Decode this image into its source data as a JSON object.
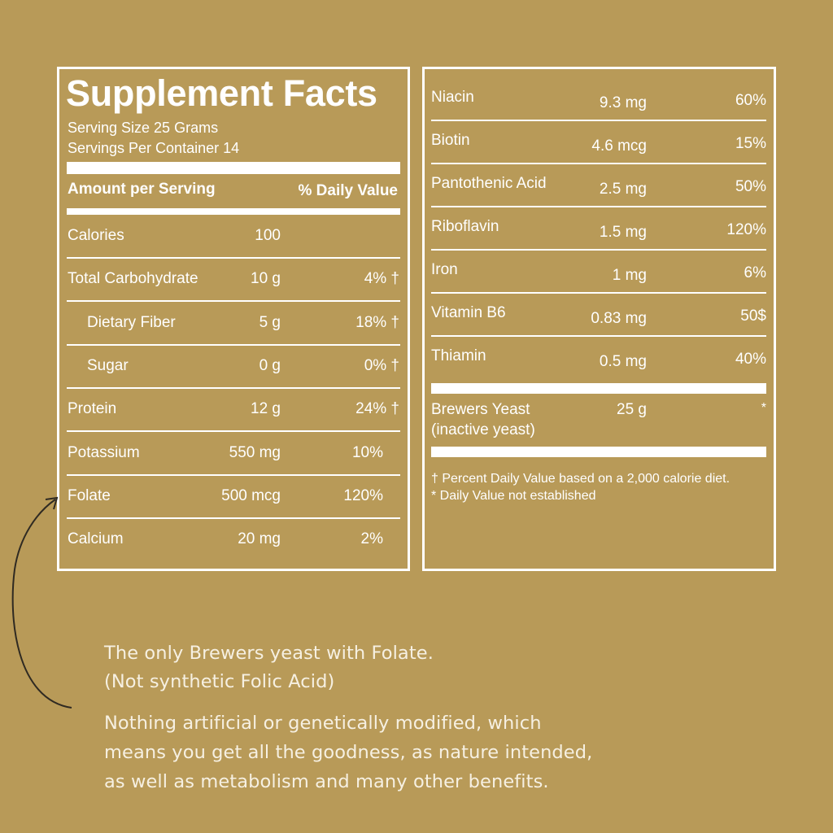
{
  "left_panel": {
    "title": "Supplement Facts",
    "serving_size": "Serving Size 25 Grams",
    "servings_per_container": "Servings Per Container 14",
    "amount_header": "Amount per Serving",
    "dv_header": "% Daily Value",
    "rows": [
      {
        "name": "Calories",
        "amount": "100",
        "dv": ""
      },
      {
        "name": "Total Carbohydrate",
        "amount": "10 g",
        "dv": "4% †"
      },
      {
        "name": "Dietary Fiber",
        "amount": "5 g",
        "dv": "18% †"
      },
      {
        "name": "Sugar",
        "amount": "0 g",
        "dv": "0% †"
      },
      {
        "name": "Protein",
        "amount": "12 g",
        "dv": "24% †"
      },
      {
        "name": "Potassium",
        "amount": "550 mg",
        "dv": "10%"
      },
      {
        "name": "Folate",
        "amount": "500 mcg",
        "dv": "120%"
      },
      {
        "name": "Calcium",
        "amount": "20 mg",
        "dv": "2%"
      }
    ]
  },
  "right_panel": {
    "rows": [
      {
        "name": "Niacin",
        "amount": "9.3 mg",
        "dv": "60%"
      },
      {
        "name": "Biotin",
        "amount": "4.6 mcg",
        "dv": "15%"
      },
      {
        "name": "Pantothenic Acid",
        "amount": "2.5 mg",
        "dv": "50%"
      },
      {
        "name": "Riboflavin",
        "amount": "1.5 mg",
        "dv": "120%"
      },
      {
        "name": "Iron",
        "amount": "1 mg",
        "dv": "6%"
      },
      {
        "name": "Vitamin B6",
        "amount": "0.83 mg",
        "dv": "50$"
      },
      {
        "name": "Thiamin",
        "amount": "0.5 mg",
        "dv": "40%"
      }
    ],
    "yeast": {
      "name_line1": "Brewers Yeast",
      "name_line2": "(inactive yeast)",
      "amount": "25 g",
      "dv": "*"
    },
    "footnote_1": "† Percent Daily Value based on a 2,000 calorie diet.",
    "footnote_2": "* Daily Value not established"
  },
  "blurb": {
    "line1": "The only Brewers yeast with Folate.",
    "line2": "(Not synthetic Folic Acid)",
    "line3": "Nothing artificial or genetically modified, which",
    "line4": "means you get all the goodness, as nature intended,",
    "line5": "as well as metabolism and many other benefits."
  },
  "colors": {
    "background": "#b89a58",
    "text": "#ffffff",
    "arrow": "#2f2a22"
  },
  "icons": {
    "arrow": "curved-arrow-icon"
  }
}
